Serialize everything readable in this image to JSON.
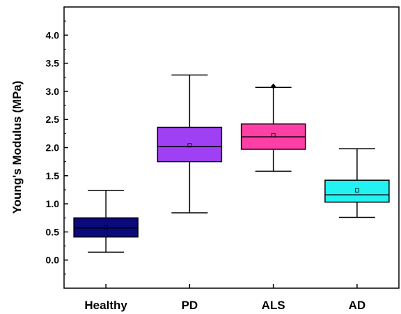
{
  "chart_data": {
    "type": "box",
    "title": "",
    "xlabel": "",
    "ylabel": "Young's Modulus (MPa)",
    "ylim": [
      -0.5,
      4.5
    ],
    "yticks": [
      0.0,
      0.5,
      1.0,
      1.5,
      2.0,
      2.5,
      3.0,
      3.5,
      4.0
    ],
    "ytick_labels": [
      "0.0",
      "0.5",
      "1.0",
      "1.5",
      "2.0",
      "2.5",
      "3.0",
      "3.5",
      "4.0"
    ],
    "categories": [
      "Healthy",
      "PD",
      "ALS",
      "AD"
    ],
    "series": [
      {
        "category": "Healthy",
        "min": 0.14,
        "q1": 0.41,
        "median": 0.57,
        "q3": 0.75,
        "max": 1.24,
        "mean": 0.58,
        "outliers": [],
        "color": "#0a0a7a"
      },
      {
        "category": "PD",
        "min": 0.84,
        "q1": 1.75,
        "median": 2.02,
        "q3": 2.36,
        "max": 3.29,
        "mean": 2.04,
        "outliers": [],
        "color": "#a040f5"
      },
      {
        "category": "ALS",
        "min": 1.58,
        "q1": 1.97,
        "median": 2.19,
        "q3": 2.42,
        "max": 3.07,
        "mean": 2.22,
        "outliers": [
          3.09
        ],
        "color": "#ff3fa5"
      },
      {
        "category": "AD",
        "min": 0.76,
        "q1": 1.03,
        "median": 1.16,
        "q3": 1.42,
        "max": 1.98,
        "mean": 1.24,
        "outliers": [],
        "color": "#22f2f2"
      }
    ],
    "grid": false,
    "legend": "none"
  }
}
